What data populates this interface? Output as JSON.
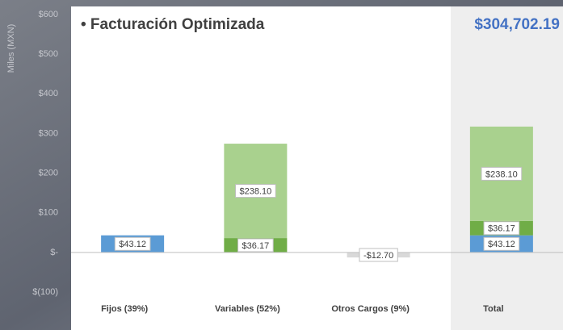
{
  "chart_data": {
    "type": "stacked-bar",
    "title": "• Facturación Optimizada",
    "annotation": "$304,702.19",
    "y_label": "Miles (MXN)",
    "categories": [
      "Fijos (39%)",
      "Variables (52%)",
      "Otros Cargos (9%)",
      "Total"
    ],
    "series": [
      {
        "color": "#5b9bd5",
        "values": [
          43.12,
          null,
          null,
          43.12
        ],
        "value_labels": [
          "$43.12",
          null,
          null,
          "$43.12"
        ]
      },
      {
        "color": "#70ad47",
        "values": [
          null,
          36.17,
          null,
          36.17
        ],
        "value_labels": [
          null,
          "$36.17",
          null,
          "$36.17"
        ]
      },
      {
        "color": "#a9d18e",
        "values": [
          null,
          238.1,
          null,
          238.1
        ],
        "value_labels": [
          null,
          "$238.10",
          null,
          "$238.10"
        ]
      },
      {
        "color": "#d9d9d9",
        "values": [
          null,
          null,
          -12.7,
          null
        ],
        "value_labels": [
          null,
          null,
          "-$12.70",
          null
        ]
      }
    ],
    "ylim": [
      -100,
      600
    ],
    "yticks": [
      {
        "value": 600,
        "label": "$600"
      },
      {
        "value": 500,
        "label": "$500"
      },
      {
        "value": 400,
        "label": "$400"
      },
      {
        "value": 300,
        "label": "$300"
      },
      {
        "value": 200,
        "label": "$200"
      },
      {
        "value": 100,
        "label": "$100"
      },
      {
        "value": 0,
        "label": "$-"
      },
      {
        "value": -100,
        "label": "$(100)"
      }
    ]
  }
}
